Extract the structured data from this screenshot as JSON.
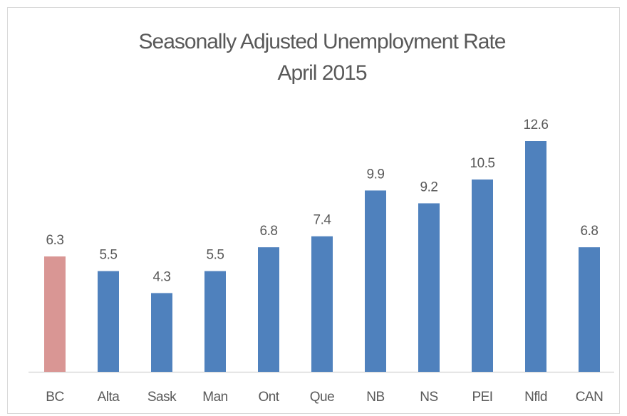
{
  "chart_data": {
    "type": "bar",
    "title": "Seasonally Adjusted Unemployment Rate",
    "subtitle": "April 2015",
    "categories": [
      "BC",
      "Alta",
      "Sask",
      "Man",
      "Ont",
      "Que",
      "NB",
      "NS",
      "PEI",
      "Nfld",
      "CAN"
    ],
    "values": [
      6.3,
      5.5,
      4.3,
      5.5,
      6.8,
      7.4,
      9.9,
      9.2,
      10.5,
      12.6,
      6.8
    ],
    "colors": [
      "#d99694",
      "#4f81bd",
      "#4f81bd",
      "#4f81bd",
      "#4f81bd",
      "#4f81bd",
      "#4f81bd",
      "#4f81bd",
      "#4f81bd",
      "#4f81bd",
      "#4f81bd"
    ]
  }
}
